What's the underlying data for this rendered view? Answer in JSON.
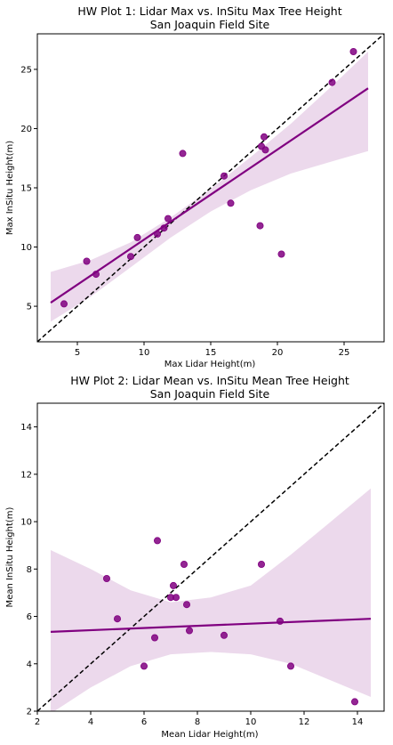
{
  "chart_data": [
    {
      "type": "scatter",
      "title": "HW Plot 1: Lidar Max vs. InSitu Max Tree Height",
      "subtitle": "San Joaquin Field Site",
      "xlabel": "Max Lidar Height(m)",
      "ylabel": "Max InSitu Height(m)",
      "xlim": [
        2,
        28
      ],
      "ylim": [
        2,
        28
      ],
      "xticks": [
        5,
        10,
        15,
        20,
        25
      ],
      "yticks": [
        5,
        10,
        15,
        20,
        25
      ],
      "x": [
        4.0,
        5.7,
        6.4,
        9.0,
        9.5,
        11.0,
        11.5,
        11.8,
        12.9,
        16.0,
        16.5,
        18.7,
        18.8,
        19.0,
        19.1,
        20.3,
        24.1,
        25.7
      ],
      "y": [
        5.2,
        8.8,
        7.7,
        9.2,
        10.8,
        11.1,
        11.6,
        12.4,
        17.9,
        16.0,
        13.7,
        11.8,
        18.5,
        19.3,
        18.2,
        9.4,
        23.9,
        26.5
      ],
      "fit_line": {
        "x": [
          3.0,
          26.8
        ],
        "y": [
          5.3,
          23.4
        ]
      },
      "ci_band": {
        "x": [
          3.0,
          6.0,
          9.0,
          12.0,
          15.0,
          18.0,
          21.0,
          24.0,
          26.8
        ],
        "lower": [
          3.7,
          5.8,
          8.3,
          10.8,
          13.0,
          14.8,
          16.2,
          17.2,
          18.1
        ],
        "upper": [
          7.9,
          8.9,
          10.4,
          12.5,
          14.9,
          17.6,
          20.4,
          23.5,
          26.5
        ]
      },
      "identity_line": true,
      "colors": {
        "points": "#800080",
        "fit": "#800080",
        "band": "#800080",
        "identity": "#000000"
      }
    },
    {
      "type": "scatter",
      "title": "HW Plot 2: Lidar Mean vs. InSitu Mean Tree Height",
      "subtitle": "San Joaquin Field Site",
      "xlabel": "Mean Lidar Height(m)",
      "ylabel": "Mean InSitu Height(m)",
      "xlim": [
        2,
        15
      ],
      "ylim": [
        2,
        15
      ],
      "xticks": [
        2,
        4,
        6,
        8,
        10,
        12,
        14
      ],
      "yticks": [
        2,
        4,
        6,
        8,
        10,
        12,
        14
      ],
      "x": [
        4.6,
        5.0,
        6.0,
        6.4,
        6.5,
        7.0,
        7.1,
        7.2,
        7.5,
        7.6,
        7.7,
        9.0,
        10.4,
        11.1,
        11.5,
        13.9
      ],
      "y": [
        7.6,
        5.9,
        3.9,
        5.1,
        9.2,
        6.8,
        7.3,
        6.8,
        8.2,
        6.5,
        5.4,
        5.2,
        8.2,
        5.8,
        3.9,
        2.4
      ],
      "fit_line": {
        "x": [
          2.5,
          14.5
        ],
        "y": [
          5.35,
          5.9
        ]
      },
      "ci_band": {
        "x": [
          2.5,
          4.0,
          5.5,
          7.0,
          8.5,
          10.0,
          11.5,
          13.0,
          14.5
        ],
        "lower": [
          1.9,
          3.0,
          3.9,
          4.4,
          4.5,
          4.4,
          4.0,
          3.3,
          2.6
        ],
        "upper": [
          8.8,
          8.0,
          7.1,
          6.6,
          6.8,
          7.3,
          8.6,
          10.0,
          11.4
        ]
      },
      "identity_line": true,
      "colors": {
        "points": "#800080",
        "fit": "#800080",
        "band": "#800080",
        "identity": "#000000"
      }
    }
  ]
}
